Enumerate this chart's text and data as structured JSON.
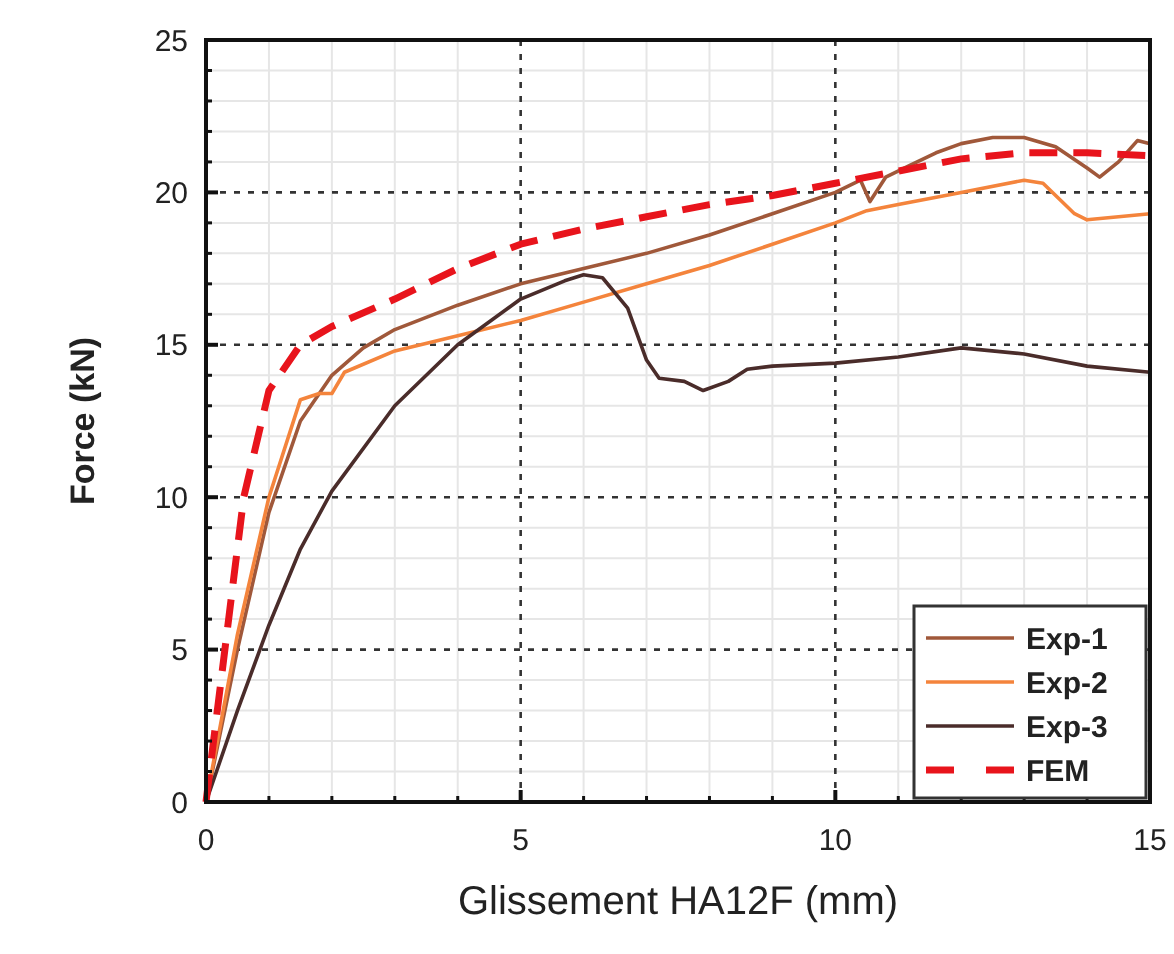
{
  "chart_data": {
    "type": "line",
    "xlabel": "Glissement HA12F (mm)",
    "ylabel": "Force (kN)",
    "xlim": [
      0,
      15
    ],
    "ylim": [
      0,
      25
    ],
    "xticks": [
      0,
      5,
      10,
      15
    ],
    "yticks": [
      0,
      5,
      10,
      15,
      20,
      25
    ],
    "grid": true,
    "legend": "bottom right",
    "marker": "none",
    "series": [
      {
        "name": "Exp-1",
        "color": "#a0583a",
        "line_style": "solid",
        "x": [
          0,
          0.5,
          1,
          1.5,
          2,
          2.5,
          3,
          4,
          5,
          6,
          7,
          8,
          9,
          10,
          10.4,
          10.55,
          10.8,
          11.2,
          11.6,
          12,
          12.5,
          13,
          13.5,
          14,
          14.2,
          14.5,
          14.8,
          15
        ],
        "values": [
          0,
          5,
          9.5,
          12.5,
          14,
          14.9,
          15.5,
          16.3,
          17,
          17.5,
          18,
          18.6,
          19.3,
          20,
          20.4,
          19.7,
          20.5,
          20.9,
          21.3,
          21.6,
          21.8,
          21.8,
          21.5,
          20.8,
          20.5,
          21,
          21.7,
          21.6
        ]
      },
      {
        "name": "Exp-2",
        "color": "#f4843c",
        "line_style": "solid",
        "x": [
          0,
          0.5,
          1,
          1.5,
          1.8,
          2,
          2.2,
          3,
          4,
          5,
          6,
          7,
          8,
          9,
          10,
          10.5,
          11,
          12,
          13,
          13.3,
          13.8,
          14,
          15
        ],
        "values": [
          0,
          5.5,
          10,
          13.2,
          13.4,
          13.4,
          14.1,
          14.8,
          15.3,
          15.8,
          16.4,
          17,
          17.6,
          18.3,
          19,
          19.4,
          19.6,
          20,
          20.4,
          20.3,
          19.3,
          19.1,
          19.3
        ]
      },
      {
        "name": "Exp-3",
        "color": "#4a2c2a",
        "line_style": "solid",
        "x": [
          0,
          0.5,
          1,
          1.5,
          2,
          3,
          4,
          5,
          5.7,
          6,
          6.3,
          6.7,
          7,
          7.2,
          7.6,
          7.9,
          8.3,
          8.6,
          9,
          10,
          11,
          12,
          13,
          14,
          15
        ],
        "values": [
          0,
          3,
          5.8,
          8.3,
          10.2,
          13,
          15,
          16.5,
          17.1,
          17.3,
          17.2,
          16.2,
          14.5,
          13.9,
          13.8,
          13.5,
          13.8,
          14.2,
          14.3,
          14.4,
          14.6,
          14.9,
          14.7,
          14.3,
          14.1
        ]
      },
      {
        "name": "FEM",
        "color": "#e8141c",
        "line_style": "dashed",
        "x": [
          0,
          0.3,
          0.6,
          1,
          1.5,
          2,
          3,
          4,
          5,
          6,
          7,
          8,
          9,
          10,
          11,
          12,
          13,
          14,
          15
        ],
        "values": [
          0,
          5,
          10,
          13.5,
          15,
          15.6,
          16.5,
          17.5,
          18.3,
          18.8,
          19.2,
          19.6,
          19.9,
          20.3,
          20.7,
          21.1,
          21.3,
          21.3,
          21.2
        ]
      }
    ]
  }
}
